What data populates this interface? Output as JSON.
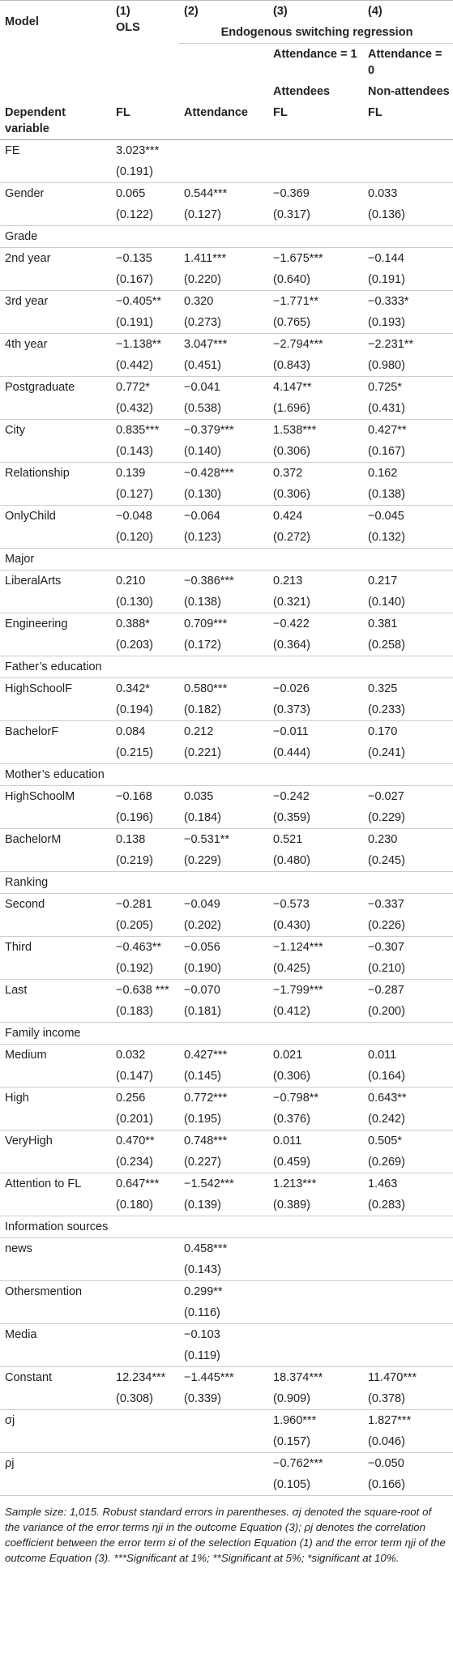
{
  "table": {
    "header": {
      "model": "Model",
      "col_numbers": [
        "(1)",
        "(2)",
        "(3)",
        "(4)"
      ],
      "ols": "OLS",
      "group": "Endogenous switching regression",
      "attendance": [
        "Attendance = 1",
        "Attendance = 0"
      ],
      "groups": [
        "Attendees",
        "Non-attendees"
      ],
      "dependent_label": "Dependent variable",
      "dependent": [
        "FL",
        "Attendance",
        "FL",
        "FL"
      ]
    },
    "rows": [
      {
        "label": "FE",
        "values": [
          "3.023***",
          null,
          null,
          null
        ],
        "se": [
          "(0.191)",
          null,
          null,
          null
        ]
      },
      {
        "label": "Gender",
        "values": [
          "0.065",
          "0.544***",
          "−0.369",
          "0.033"
        ],
        "se": [
          "(0.122)",
          "(0.127)",
          "(0.317)",
          "(0.136)"
        ]
      },
      {
        "section": "Grade"
      },
      {
        "label": "2nd year",
        "values": [
          "−0.135",
          "1.411***",
          "−1.675***",
          "−0.144"
        ],
        "se": [
          "(0.167)",
          "(0.220)",
          "(0.640)",
          "(0.191)"
        ]
      },
      {
        "label": "3rd year",
        "values": [
          "−0.405**",
          "0.320",
          "−1.771**",
          "−0.333*"
        ],
        "se": [
          "(0.191)",
          "(0.273)",
          "(0.765)",
          "(0.193)"
        ]
      },
      {
        "label": "4th year",
        "values": [
          "−1.138**",
          "3.047***",
          "−2.794***",
          "−2.231**"
        ],
        "se": [
          "(0.442)",
          "(0.451)",
          "(0.843)",
          "(0.980)"
        ]
      },
      {
        "label": "Postgraduate",
        "values": [
          "0.772*",
          "−0.041",
          "4.147**",
          "0.725*"
        ],
        "se": [
          "(0.432)",
          "(0.538)",
          "(1.696)",
          "(0.431)"
        ]
      },
      {
        "label": "City",
        "values": [
          "0.835***",
          "−0.379***",
          "1.538***",
          "0.427**"
        ],
        "se": [
          "(0.143)",
          "(0.140)",
          "(0.306)",
          "(0.167)"
        ]
      },
      {
        "label": "Relationship",
        "values": [
          "0.139",
          "−0.428***",
          "0.372",
          "0.162"
        ],
        "se": [
          "(0.127)",
          "(0.130)",
          "(0.306)",
          "(0.138)"
        ]
      },
      {
        "label": "OnlyChild",
        "values": [
          "−0.048",
          "−0.064",
          "0.424",
          "−0.045"
        ],
        "se": [
          "(0.120)",
          "(0.123)",
          "(0.272)",
          "(0.132)"
        ]
      },
      {
        "section": "Major"
      },
      {
        "label": "LiberalArts",
        "values": [
          "0.210",
          "−0.386***",
          "0.213",
          "0.217"
        ],
        "se": [
          "(0.130)",
          "(0.138)",
          "(0.321)",
          "(0.140)"
        ]
      },
      {
        "label": "Engineering",
        "values": [
          "0.388*",
          "0.709***",
          "−0.422",
          "0.381"
        ],
        "se": [
          "(0.203)",
          "(0.172)",
          "(0.364)",
          "(0.258)"
        ]
      },
      {
        "section": "Father’s education"
      },
      {
        "label": "HighSchoolF",
        "values": [
          "0.342*",
          "0.580***",
          "−0.026",
          "0.325"
        ],
        "se": [
          "(0.194)",
          "(0.182)",
          "(0.373)",
          "(0.233)"
        ]
      },
      {
        "label": "BachelorF",
        "values": [
          "0.084",
          "0.212",
          "−0.011",
          "0.170"
        ],
        "se": [
          "(0.215)",
          "(0.221)",
          "(0.444)",
          "(0.241)"
        ]
      },
      {
        "section": "Mother’s education"
      },
      {
        "label": "HighSchoolM",
        "values": [
          "−0.168",
          "0.035",
          "−0.242",
          "−0.027"
        ],
        "se": [
          "(0.196)",
          "(0.184)",
          "(0.359)",
          "(0.229)"
        ]
      },
      {
        "label": "BachelorM",
        "values": [
          "0.138",
          "−0.531**",
          "0.521",
          "0.230"
        ],
        "se": [
          "(0.219)",
          "(0.229)",
          "(0.480)",
          "(0.245)"
        ]
      },
      {
        "section": "Ranking"
      },
      {
        "label": "Second",
        "values": [
          "−0.281",
          "−0.049",
          "−0.573",
          "−0.337"
        ],
        "se": [
          "(0.205)",
          "(0.202)",
          "(0.430)",
          "(0.226)"
        ]
      },
      {
        "label": "Third",
        "values": [
          "−0.463**",
          "−0.056",
          "−1.124***",
          "−0.307"
        ],
        "se": [
          "(0.192)",
          "(0.190)",
          "(0.425)",
          "(0.210)"
        ]
      },
      {
        "label": "Last",
        "values": [
          "−0.638 ***",
          "−0.070",
          "−1.799***",
          "−0.287"
        ],
        "se": [
          "(0.183)",
          "(0.181)",
          "(0.412)",
          "(0.200)"
        ]
      },
      {
        "section": "Family income"
      },
      {
        "label": "Medium",
        "values": [
          "0.032",
          "0.427***",
          "0.021",
          "0.011"
        ],
        "se": [
          "(0.147)",
          "(0.145)",
          "(0.306)",
          "(0.164)"
        ]
      },
      {
        "label": "High",
        "values": [
          "0.256",
          "0.772***",
          "−0.798**",
          "0.643**"
        ],
        "se": [
          "(0.201)",
          "(0.195)",
          "(0.376)",
          "(0.242)"
        ]
      },
      {
        "label": "VeryHigh",
        "values": [
          "0.470**",
          "0.748***",
          "0.011",
          "0.505*"
        ],
        "se": [
          "(0.234)",
          "(0.227)",
          "(0.459)",
          "(0.269)"
        ]
      },
      {
        "label": "Attention to FL",
        "values": [
          "0.647***",
          "−1.542***",
          "1.213***",
          "1.463"
        ],
        "se": [
          "(0.180)",
          "(0.139)",
          "(0.389)",
          "(0.283)"
        ]
      },
      {
        "section": "Information sources"
      },
      {
        "label": "news",
        "values": [
          null,
          "0.458***",
          null,
          null
        ],
        "se": [
          null,
          "(0.143)",
          null,
          null
        ]
      },
      {
        "label": "Othersmention",
        "values": [
          null,
          "0.299**",
          null,
          null
        ],
        "se": [
          null,
          "(0.116)",
          null,
          null
        ]
      },
      {
        "label": "Media",
        "values": [
          null,
          "−0.103",
          null,
          null
        ],
        "se": [
          null,
          "(0.119)",
          null,
          null
        ]
      },
      {
        "label": "Constant",
        "values": [
          "12.234***",
          "−1.445***",
          "18.374***",
          "11.470***"
        ],
        "se": [
          "(0.308)",
          "(0.339)",
          "(0.909)",
          "(0.378)"
        ]
      },
      {
        "label": "σj",
        "values": [
          null,
          null,
          "1.960***",
          "1.827***"
        ],
        "se": [
          null,
          null,
          "(0.157)",
          "(0.046)"
        ]
      },
      {
        "label": "ρj",
        "values": [
          null,
          null,
          "−0.762***",
          "−0.050"
        ],
        "se": [
          null,
          null,
          "(0.105)",
          "(0.166)"
        ]
      }
    ]
  },
  "footnote": "Sample size: 1,015. Robust standard errors in parentheses. σj denoted the square-root of the variance of the error terms ηji in the outcome Equation (3); ρj denotes the correlation coefficient between the error term εi of the selection Equation (1) and the error term ηji of the outcome Equation (3). ***Significant at 1%; **Significant at 5%; *significant at 10%."
}
